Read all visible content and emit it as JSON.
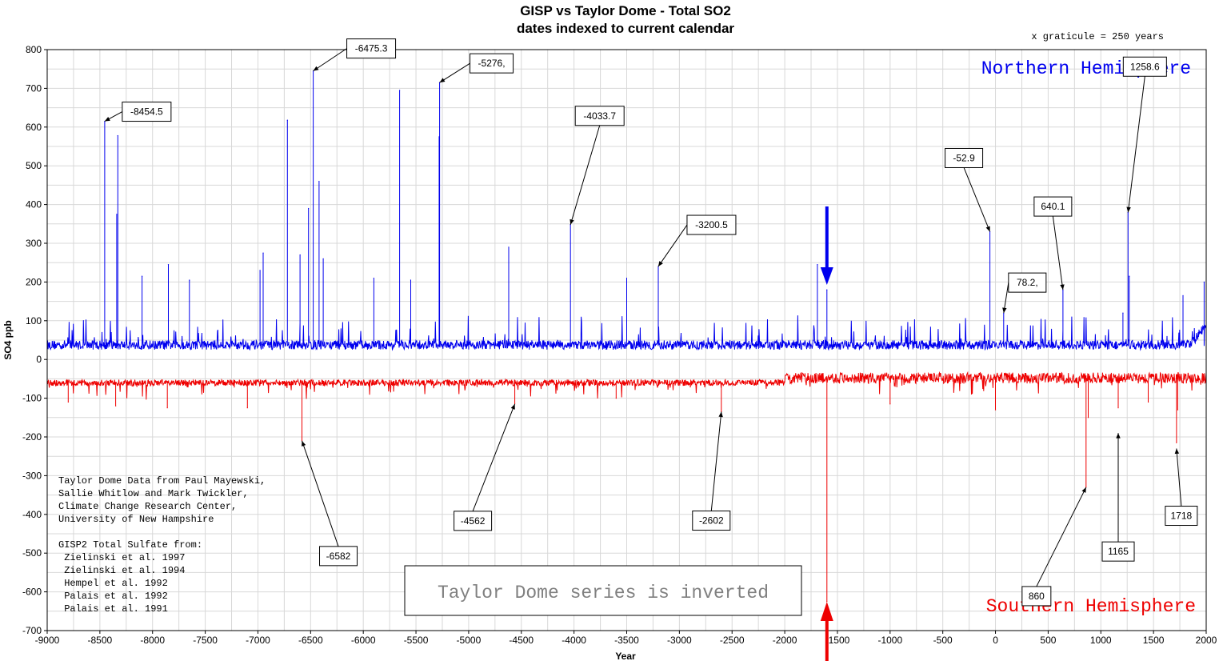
{
  "chart_data": {
    "type": "line",
    "title": "GISP vs Taylor Dome - Total SO2",
    "subtitle": "dates indexed to current calendar",
    "graticule_note": "x graticule = 250 years",
    "xlabel": "Year",
    "ylabel": "SO4 ppb",
    "xlim": [
      -9000,
      2000
    ],
    "ylim": [
      -700,
      800
    ],
    "x_ticks": [
      -9000,
      -8500,
      -8000,
      -7500,
      -7000,
      -6500,
      -6000,
      -5500,
      -5000,
      -4500,
      -4000,
      -3500,
      -3000,
      -2500,
      -2000,
      -1500,
      -1000,
      -500,
      0,
      500,
      1000,
      1500,
      2000
    ],
    "y_ticks": [
      800,
      700,
      600,
      500,
      400,
      300,
      200,
      100,
      0,
      -100,
      -200,
      -300,
      -400,
      -500,
      -600,
      -700
    ],
    "grid": true,
    "series": [
      {
        "name": "Northern Hemisphere",
        "color": "#0000ee",
        "baseline": 35,
        "peaks": [
          {
            "x": -8454.5,
            "y": 615
          },
          {
            "x": -8330,
            "y": 578
          },
          {
            "x": -8340,
            "y": 375
          },
          {
            "x": -8100,
            "y": 215
          },
          {
            "x": -7850,
            "y": 245
          },
          {
            "x": -7650,
            "y": 205
          },
          {
            "x": -6980,
            "y": 230
          },
          {
            "x": -6950,
            "y": 275
          },
          {
            "x": -6720,
            "y": 618
          },
          {
            "x": -6600,
            "y": 270
          },
          {
            "x": -6520,
            "y": 390
          },
          {
            "x": -6475.3,
            "y": 745
          },
          {
            "x": -6420,
            "y": 460
          },
          {
            "x": -6380,
            "y": 260
          },
          {
            "x": -5900,
            "y": 210
          },
          {
            "x": -5655,
            "y": 695
          },
          {
            "x": -5550,
            "y": 205
          },
          {
            "x": -5276,
            "y": 715
          },
          {
            "x": -5280,
            "y": 575
          },
          {
            "x": -4620,
            "y": 290
          },
          {
            "x": -4033.7,
            "y": 348
          },
          {
            "x": -3500,
            "y": 210
          },
          {
            "x": -3200.5,
            "y": 240
          },
          {
            "x": -1690,
            "y": 245
          },
          {
            "x": -1600,
            "y": 180
          },
          {
            "x": -52.9,
            "y": 330
          },
          {
            "x": 78.2,
            "y": 120
          },
          {
            "x": 640.1,
            "y": 180
          },
          {
            "x": 1210,
            "y": 120
          },
          {
            "x": 1258.6,
            "y": 380
          },
          {
            "x": 1270,
            "y": 215
          },
          {
            "x": 1780,
            "y": 165
          },
          {
            "x": 1980,
            "y": 200
          }
        ]
      },
      {
        "name": "Southern Hemisphere",
        "color": "#ee0000",
        "baseline": -60,
        "peaks": [
          {
            "x": -8800,
            "y": -110
          },
          {
            "x": -8350,
            "y": -120
          },
          {
            "x": -7860,
            "y": -125
          },
          {
            "x": -7100,
            "y": -125
          },
          {
            "x": -6582,
            "y": -210
          },
          {
            "x": -4562,
            "y": -115
          },
          {
            "x": -3600,
            "y": -100
          },
          {
            "x": -2602,
            "y": -135
          },
          {
            "x": -1600,
            "y": -625
          },
          {
            "x": -1000,
            "y": -115
          },
          {
            "x": 0,
            "y": -130
          },
          {
            "x": 860,
            "y": -330
          },
          {
            "x": 880,
            "y": -150
          },
          {
            "x": 1165,
            "y": -125
          },
          {
            "x": 1450,
            "y": -110
          },
          {
            "x": 1718,
            "y": -215
          },
          {
            "x": 1730,
            "y": -130
          }
        ]
      }
    ],
    "annotations": [
      {
        "label": "-8454.5",
        "x": -8454.5,
        "y": 615,
        "series": 0
      },
      {
        "label": "-6475.3",
        "x": -6475.3,
        "y": 745,
        "series": 0
      },
      {
        "label": "-5276,",
        "x": -5276,
        "y": 715,
        "series": 0
      },
      {
        "label": "-4033.7",
        "x": -4033.7,
        "y": 348,
        "series": 0
      },
      {
        "label": "-3200.5",
        "x": -3200.5,
        "y": 240,
        "series": 0
      },
      {
        "label": "-52.9",
        "x": -52.9,
        "y": 330,
        "series": 0
      },
      {
        "label": "78.2,",
        "x": 78.2,
        "y": 120,
        "series": 0
      },
      {
        "label": "640.1",
        "x": 640.1,
        "y": 180,
        "series": 0
      },
      {
        "label": "1258.6",
        "x": 1258.6,
        "y": 380,
        "series": 0
      },
      {
        "label": "-6582",
        "x": -6582,
        "y": -210,
        "series": 1
      },
      {
        "label": "-4562",
        "x": -4562,
        "y": -115,
        "series": 1
      },
      {
        "label": "-2602",
        "x": -2602,
        "y": -135,
        "series": 1
      },
      {
        "label": "860",
        "x": 860,
        "y": -330,
        "series": 1
      },
      {
        "label": "1165",
        "x": 1165,
        "y": -190,
        "series": 1
      },
      {
        "label": "1718",
        "x": 1718,
        "y": -230,
        "series": 1
      }
    ],
    "inverted_note": "Taylor Dome series is inverted",
    "marker_year": -1600,
    "credits": [
      "Taylor Dome Data from Paul Mayewski,",
      "Sallie Whitlow and Mark Twickler,",
      "Climate Change Research Center,",
      "University of New Hampshire",
      "",
      "GISP2 Total Sulfate from:",
      " Zielinski et al. 1997",
      " Zielinski et al. 1994",
      " Hempel et al. 1992",
      " Palais et al. 1992",
      " Palais et al. 1991"
    ]
  }
}
